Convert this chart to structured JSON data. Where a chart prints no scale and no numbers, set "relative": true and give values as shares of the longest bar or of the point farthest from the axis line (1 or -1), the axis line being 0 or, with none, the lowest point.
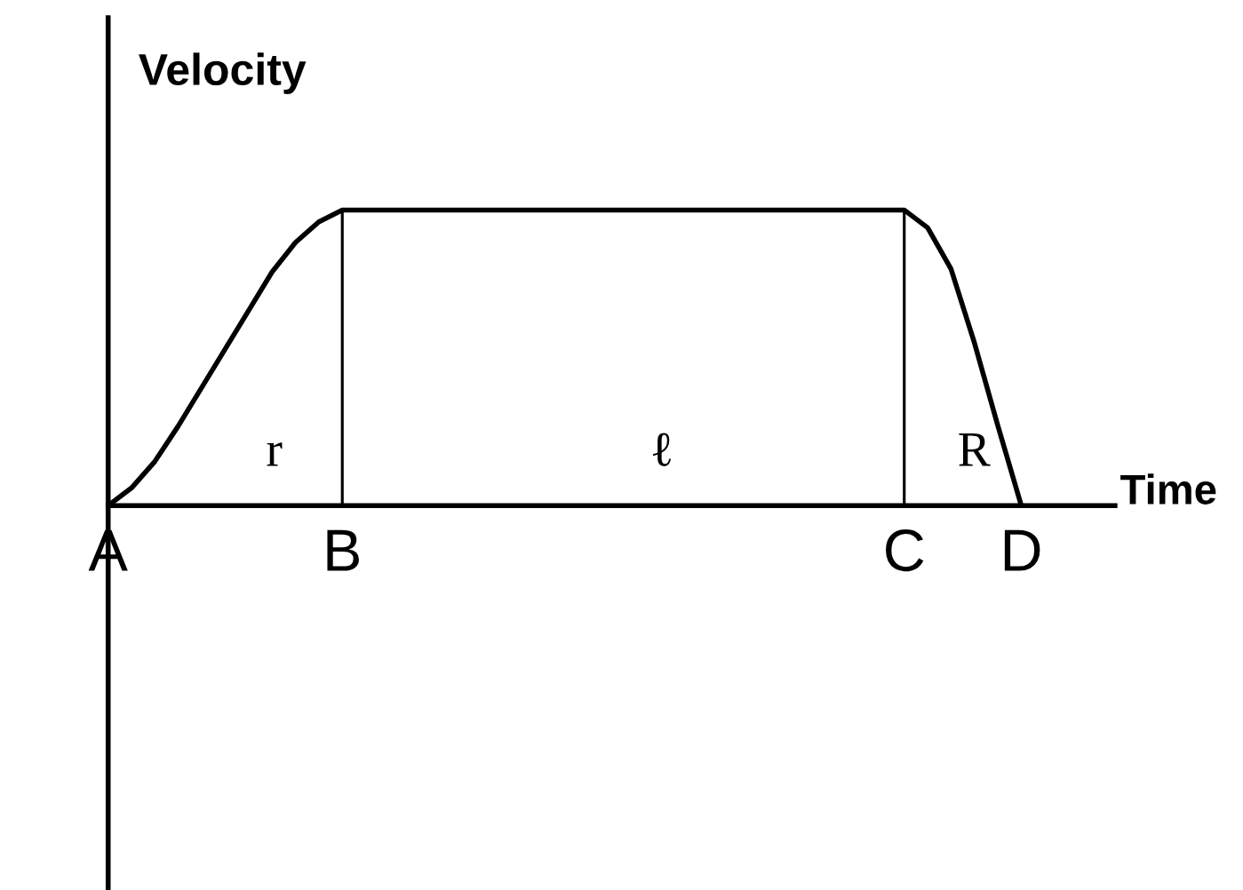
{
  "chart_data": {
    "type": "line",
    "relative": true,
    "xlabel": "Time",
    "ylabel": "Velocity",
    "categories": [
      "A",
      null,
      null,
      null,
      null,
      null,
      null,
      null,
      null,
      null,
      "B",
      null,
      null,
      null,
      null,
      null,
      null,
      null,
      null,
      null,
      null,
      null,
      null,
      null,
      null,
      null,
      null,
      null,
      null,
      null,
      null,
      null,
      null,
      null,
      "C",
      null,
      null,
      null,
      null,
      "D",
      null,
      null,
      null,
      null
    ],
    "series": [
      {
        "color": "#000000",
        "values": [
          0,
          0.06,
          0.15,
          0.27,
          0.4,
          0.53,
          0.66,
          0.79,
          0.89,
          0.96,
          1,
          1,
          1,
          1,
          1,
          1,
          1,
          1,
          1,
          1,
          1,
          1,
          1,
          1,
          1,
          1,
          1,
          1,
          1,
          1,
          1,
          1,
          1,
          1,
          1,
          0.94,
          0.8,
          0.55,
          0.27,
          0,
          null,
          null,
          null,
          null
        ]
      },
      {
        "type": "bar",
        "color": "#000000",
        "values": [
          null,
          null,
          null,
          null,
          null,
          null,
          null,
          null,
          null,
          null,
          1,
          null,
          null,
          null,
          null,
          null,
          null,
          null,
          null,
          null,
          null,
          null,
          null,
          null,
          null,
          null,
          null,
          null,
          null,
          null,
          null,
          null,
          null,
          null,
          1,
          null,
          null,
          null,
          null,
          null,
          null,
          null,
          null,
          null
        ]
      }
    ],
    "tick_labels": "x",
    "marker": "none",
    "line_style": "solid",
    "annotations": [
      "r",
      "ℓ",
      "R"
    ]
  }
}
